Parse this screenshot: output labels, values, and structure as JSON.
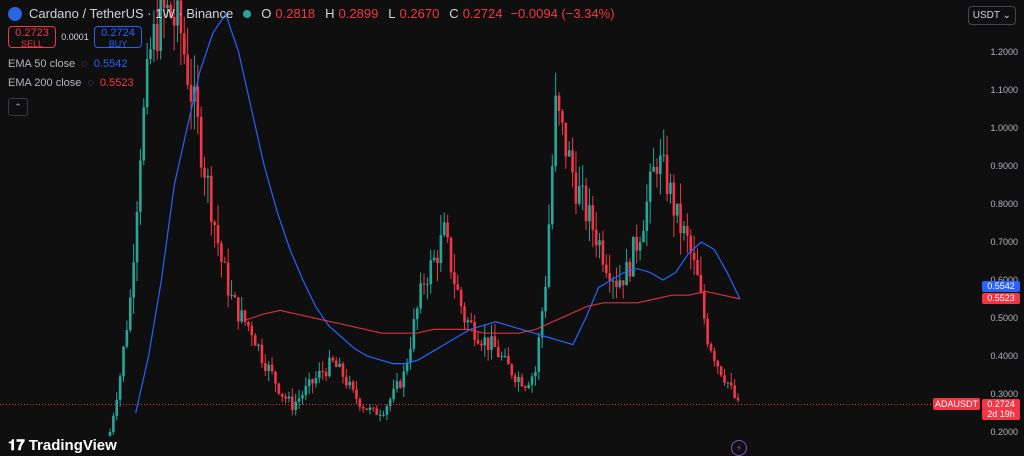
{
  "header": {
    "symbol_title": "Cardano / TetherUS · 1W · Binance",
    "ohlc": [
      {
        "label": "O",
        "value": "0.2818"
      },
      {
        "label": "H",
        "value": "0.2899"
      },
      {
        "label": "L",
        "value": "0.2670"
      },
      {
        "label": "C",
        "value": "0.2724"
      }
    ],
    "change": "−0.0094 (−3.34%)",
    "currency": "USDT"
  },
  "trade": {
    "sell_price": "0.2723",
    "sell_label": "SELL",
    "spread": "0.0001",
    "buy_price": "0.2724",
    "buy_label": "BUY"
  },
  "indicators": [
    {
      "name": "EMA 50 close",
      "value": "0.5542",
      "color": "#2962ff"
    },
    {
      "name": "EMA 200 close",
      "value": "0.5523",
      "color": "#f23645"
    }
  ],
  "tags": {
    "symbol": "ADAUSDT",
    "price": "0.2724",
    "countdown": "2d 19h"
  },
  "branding": "TradingView",
  "colors": {
    "up": "#26a69a",
    "down": "#f23645",
    "background": "#0f0f0f"
  },
  "chart_data": {
    "type": "candlestick",
    "y_ticks": [
      "1.2000",
      "1.1000",
      "1.0000",
      "0.9000",
      "0.8000",
      "0.7000",
      "0.6000",
      "0.5000",
      "0.4000",
      "0.3000",
      "0.2000"
    ],
    "ylim": [
      0.18,
      1.32
    ],
    "last_price": 0.2724,
    "close_series_approx": [
      0.2,
      0.35,
      0.55,
      0.95,
      1.2,
      1.3,
      1.3,
      1.25,
      1.1,
      0.95,
      0.8,
      0.65,
      0.55,
      0.5,
      0.47,
      0.4,
      0.35,
      0.3,
      0.27,
      0.3,
      0.33,
      0.36,
      0.38,
      0.35,
      0.3,
      0.27,
      0.25,
      0.26,
      0.3,
      0.35,
      0.48,
      0.6,
      0.65,
      0.72,
      0.6,
      0.5,
      0.47,
      0.44,
      0.42,
      0.38,
      0.35,
      0.33,
      0.36,
      0.6,
      1.05,
      0.95,
      0.85,
      0.78,
      0.72,
      0.65,
      0.6,
      0.62,
      0.7,
      0.8,
      0.92,
      0.86,
      0.76,
      0.7,
      0.6,
      0.45,
      0.38,
      0.33,
      0.27
    ],
    "ema50_approx": [
      null,
      null,
      0.25,
      0.4,
      0.6,
      0.85,
      1.0,
      1.15,
      1.25,
      1.3,
      1.2,
      1.05,
      0.9,
      0.78,
      0.68,
      0.6,
      0.53,
      0.48,
      0.45,
      0.42,
      0.4,
      0.39,
      0.38,
      0.38,
      0.39,
      0.41,
      0.43,
      0.45,
      0.47,
      0.48,
      0.49,
      0.48,
      0.47,
      0.46,
      0.45,
      0.44,
      0.43,
      0.5,
      0.58,
      0.6,
      0.62,
      0.63,
      0.62,
      0.6,
      0.62,
      0.67,
      0.7,
      0.68,
      0.62,
      0.55
    ],
    "ema200_approx": [
      0.495,
      0.51,
      0.52,
      0.51,
      0.5,
      0.49,
      0.48,
      0.47,
      0.46,
      0.46,
      0.46,
      0.47,
      0.47,
      0.47,
      0.46,
      0.46,
      0.46,
      0.47,
      0.49,
      0.51,
      0.53,
      0.54,
      0.54,
      0.54,
      0.55,
      0.56,
      0.56,
      0.57,
      0.56,
      0.55
    ]
  }
}
